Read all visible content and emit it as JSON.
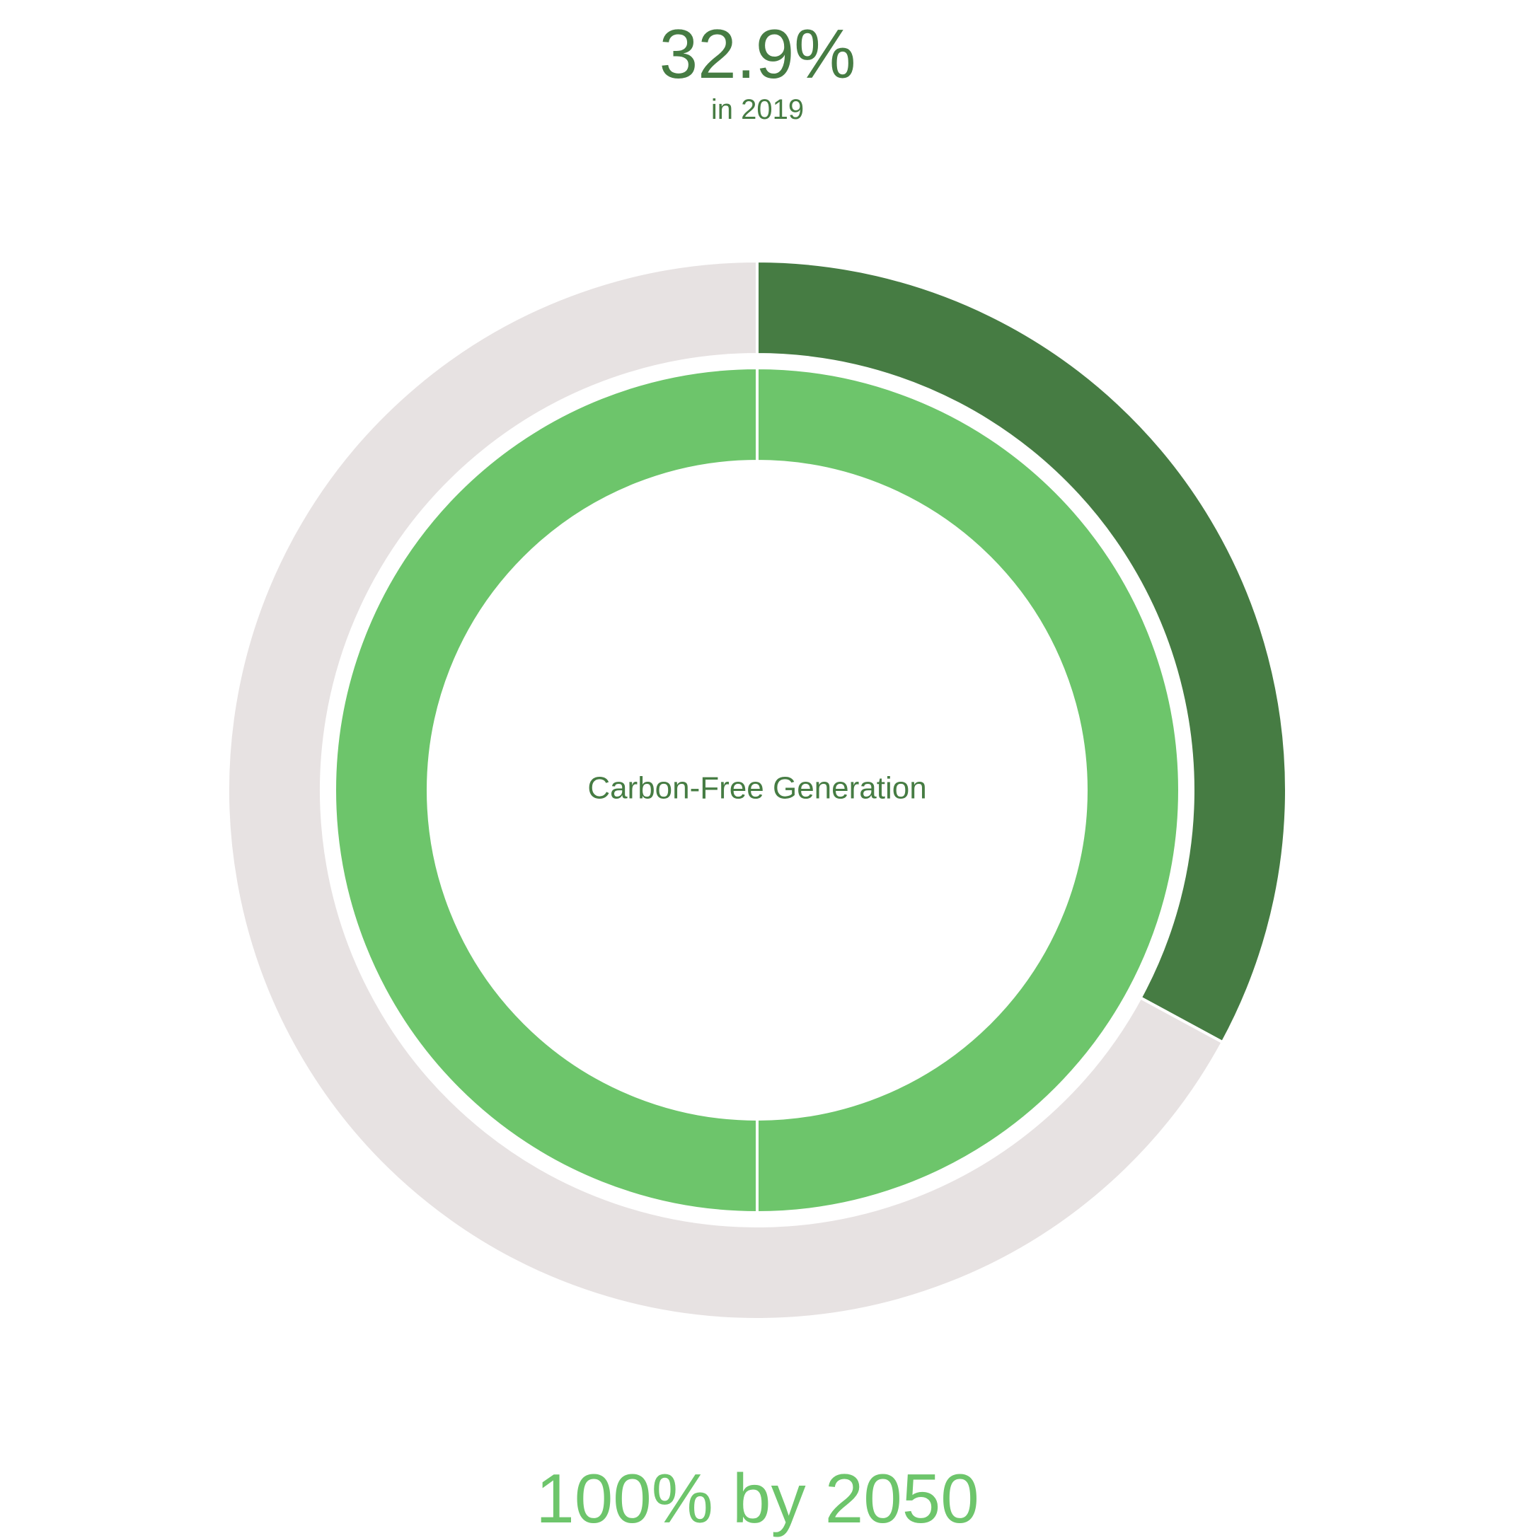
{
  "header": {
    "value": "32.9%",
    "subtitle": "in 2019"
  },
  "footer": {
    "target": "100% by 2050"
  },
  "chart_data": {
    "type": "pie",
    "center_label": "Carbon-Free Generation",
    "rings": [
      {
        "slices": [
          {
            "value": 32.9,
            "color": "#467c43"
          },
          {
            "value": 67.1,
            "color": "#e7e2e2"
          }
        ]
      },
      {
        "slices": [
          {
            "value": 50,
            "color": "#6dc56b"
          },
          {
            "value": 50,
            "color": "#6dc56b"
          }
        ]
      }
    ],
    "colors": {
      "progress": "#467c43",
      "remaining": "#e7e2e2",
      "target": "#6dc56b",
      "separator": "#ffffff"
    }
  }
}
